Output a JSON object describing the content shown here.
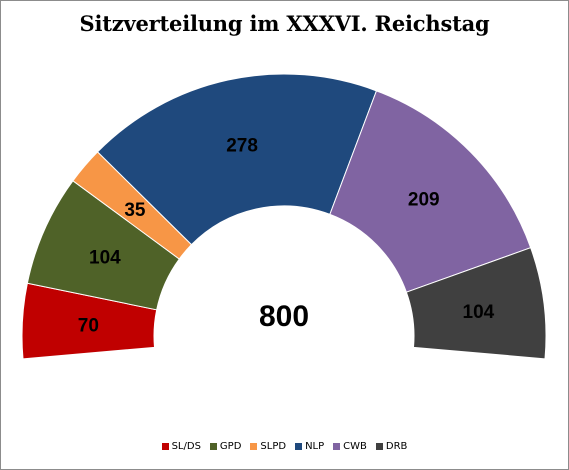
{
  "chart_data": {
    "type": "pie",
    "subtype": "half-donut",
    "title": "Sitzverteilung im XXXVI. Reichstag",
    "total": "800",
    "series": [
      {
        "name": "SL/DS",
        "value": 70,
        "color": "#c00000"
      },
      {
        "name": "GPD",
        "value": 104,
        "color": "#4f6228"
      },
      {
        "name": "SLPD",
        "value": 35,
        "color": "#f79646"
      },
      {
        "name": "NLP",
        "value": 278,
        "color": "#1f497d"
      },
      {
        "name": "CWB",
        "value": 209,
        "color": "#8064a2"
      },
      {
        "name": "DRB",
        "value": 104,
        "color": "#404040"
      }
    ],
    "legend_position": "bottom",
    "data_labels": true
  }
}
